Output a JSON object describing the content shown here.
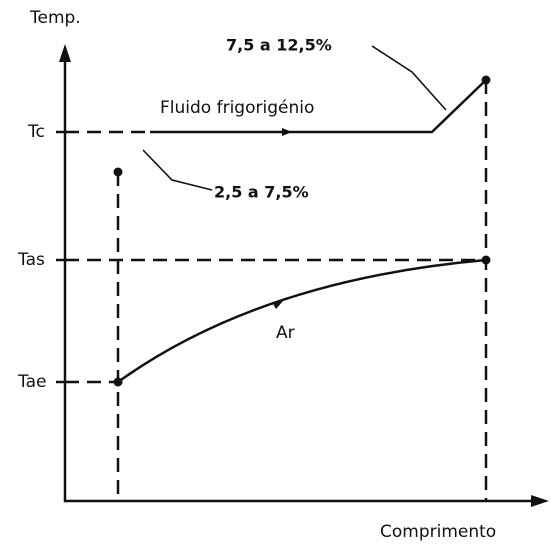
{
  "axes": {
    "y_label": "Temp.",
    "x_label": "Comprimento"
  },
  "levels": {
    "tc": "Tc",
    "tas": "Tas",
    "tae": "Tae"
  },
  "curves": {
    "refrigerant": "Fluido frigorigénio",
    "air": "Ar"
  },
  "annotations": {
    "upper": "7,5 a 12,5%",
    "lower": "2,5 a 7,5%"
  }
}
